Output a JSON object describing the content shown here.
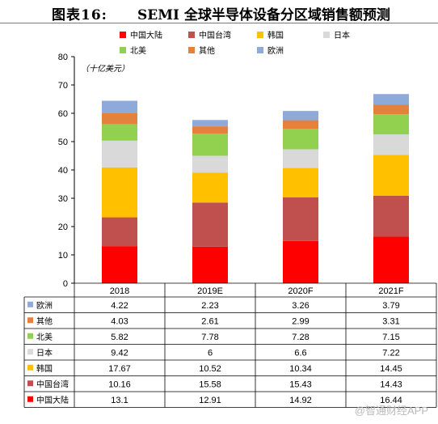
{
  "header": {
    "figure_label": "图表16:",
    "title": "SEMI 全球半导体设备分区域销售额预测"
  },
  "watermark": "@智通财经APP",
  "chart_data": {
    "type": "bar",
    "stacked": true,
    "unit_label": "（十亿美元）",
    "categories": [
      "2018",
      "2019E",
      "2020F",
      "2021F"
    ],
    "ylim": [
      0,
      80
    ],
    "yticks": [
      0,
      10,
      20,
      30,
      40,
      50,
      60,
      70,
      80
    ],
    "grid": false,
    "legend_position": "top",
    "series": [
      {
        "name": "中国大陆",
        "color": "#ff0000",
        "values": [
          13.1,
          12.91,
          14.92,
          16.44
        ]
      },
      {
        "name": "中国台湾",
        "color": "#c0504d",
        "values": [
          10.16,
          15.58,
          15.43,
          14.43
        ]
      },
      {
        "name": "韩国",
        "color": "#ffc000",
        "values": [
          17.67,
          10.52,
          10.34,
          14.45
        ]
      },
      {
        "name": "日本",
        "color": "#d9d9d9",
        "values": [
          9.42,
          6,
          6.6,
          7.22
        ]
      },
      {
        "name": "北美",
        "color": "#92d050",
        "values": [
          5.82,
          7.78,
          7.28,
          7.15
        ]
      },
      {
        "name": "其他",
        "color": "#e3823d",
        "values": [
          4.03,
          2.61,
          2.99,
          3.31
        ]
      },
      {
        "name": "欧洲",
        "color": "#8eaadb",
        "values": [
          4.22,
          2.23,
          3.26,
          3.79
        ]
      }
    ],
    "table": {
      "row_order": [
        "欧洲",
        "其他",
        "北美",
        "日本",
        "韩国",
        "中国台湾",
        "中国大陆"
      ],
      "rows": [
        {
          "name": "欧洲",
          "color": "#8eaadb",
          "cells": [
            "4.22",
            "2.23",
            "3.26",
            "3.79"
          ]
        },
        {
          "name": "其他",
          "color": "#e3823d",
          "cells": [
            "4.03",
            "2.61",
            "2.99",
            "3.31"
          ]
        },
        {
          "name": "北美",
          "color": "#92d050",
          "cells": [
            "5.82",
            "7.78",
            "7.28",
            "7.15"
          ]
        },
        {
          "name": "日本",
          "color": "#d9d9d9",
          "cells": [
            "9.42",
            "6",
            "6.6",
            "7.22"
          ]
        },
        {
          "name": "韩国",
          "color": "#ffc000",
          "cells": [
            "17.67",
            "10.52",
            "10.34",
            "14.45"
          ]
        },
        {
          "name": "中国台湾",
          "color": "#c0504d",
          "cells": [
            "10.16",
            "15.58",
            "15.43",
            "14.43"
          ]
        },
        {
          "name": "中国大陆",
          "color": "#ff0000",
          "cells": [
            "13.1",
            "12.91",
            "14.92",
            "16.44"
          ]
        }
      ]
    }
  }
}
